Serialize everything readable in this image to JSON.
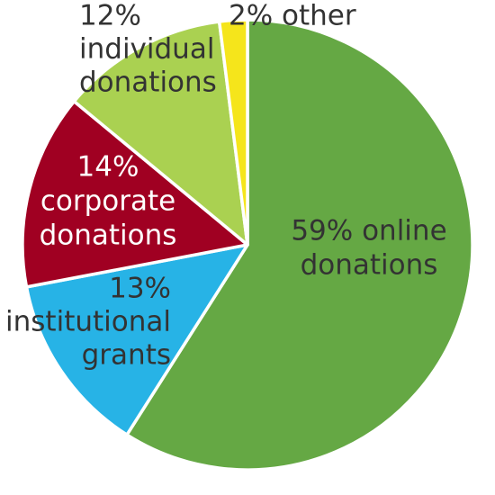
{
  "chart_data": {
    "type": "pie",
    "title": "",
    "direction": "clockwise from 12 o'clock",
    "slices": [
      {
        "label": "online donations",
        "value": 59,
        "percent_text": "59%",
        "label_lines": [
          "59% online",
          "donations"
        ],
        "color": "#65a844",
        "text_color": "#333333"
      },
      {
        "label": "institutional grants",
        "value": 13,
        "percent_text": "13%",
        "label_lines": [
          "13%",
          "institutional",
          "grants"
        ],
        "color": "#27b3e6",
        "text_color": "#333333"
      },
      {
        "label": "corporate donations",
        "value": 14,
        "percent_text": "14%",
        "label_lines": [
          "14%",
          "corporate",
          "donations"
        ],
        "color": "#a00022",
        "text_color": "#ffffff"
      },
      {
        "label": "individual donations",
        "value": 12,
        "percent_text": "12%",
        "label_lines": [
          "12%",
          "individual",
          "donations"
        ],
        "color": "#aad151",
        "text_color": "#333333"
      },
      {
        "label": "other",
        "value": 2,
        "percent_text": "2%",
        "label_lines": [
          "2% other"
        ],
        "color": "#f5e51b",
        "text_color": "#333333"
      }
    ]
  }
}
